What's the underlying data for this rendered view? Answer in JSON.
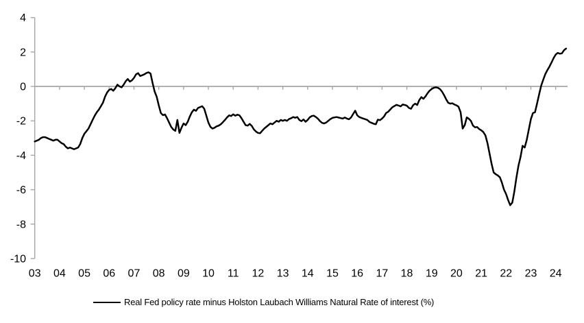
{
  "chart_data": {
    "type": "line",
    "title": "",
    "legend": "Real Fed policy rate minus Holston Laubach Williams Natural Rate of interest (%)",
    "legend_position": "bottom-center",
    "x_start_year": 2003,
    "frequency": "monthly",
    "x_tick_labels": [
      "03",
      "04",
      "05",
      "06",
      "07",
      "08",
      "09",
      "10",
      "11",
      "12",
      "13",
      "14",
      "15",
      "16",
      "17",
      "18",
      "19",
      "20",
      "21",
      "22",
      "23",
      "24"
    ],
    "y_ticks": [
      4,
      2,
      0,
      -2,
      -4,
      -6,
      -8,
      -10
    ],
    "ylim": [
      -10,
      4
    ],
    "grid": "zero-line-only",
    "colors": {
      "line": "#000000",
      "axis": "#a6a6a6",
      "text": "#000000",
      "background": "#ffffff"
    },
    "series": [
      {
        "name": "Real Fed policy rate minus Holston Laubach Williams Natural Rate of interest (%)",
        "color": "#000000",
        "values": [
          -3.2,
          -3.15,
          -3.1,
          -3.0,
          -2.95,
          -2.95,
          -3.0,
          -3.05,
          -3.1,
          -3.15,
          -3.1,
          -3.1,
          -3.2,
          -3.3,
          -3.35,
          -3.5,
          -3.6,
          -3.55,
          -3.6,
          -3.65,
          -3.6,
          -3.55,
          -3.35,
          -3.0,
          -2.75,
          -2.6,
          -2.45,
          -2.2,
          -1.95,
          -1.7,
          -1.5,
          -1.35,
          -1.15,
          -0.95,
          -0.6,
          -0.35,
          -0.2,
          -0.15,
          -0.25,
          -0.1,
          0.1,
          0.0,
          -0.05,
          0.1,
          0.3,
          0.43,
          0.28,
          0.35,
          0.5,
          0.7,
          0.77,
          0.6,
          0.65,
          0.7,
          0.78,
          0.82,
          0.75,
          0.2,
          -0.3,
          -0.6,
          -1.1,
          -1.55,
          -1.67,
          -1.63,
          -1.85,
          -2.1,
          -2.35,
          -2.5,
          -2.58,
          -1.95,
          -2.7,
          -2.4,
          -2.15,
          -2.25,
          -2.05,
          -1.75,
          -1.5,
          -1.35,
          -1.42,
          -1.25,
          -1.2,
          -1.15,
          -1.3,
          -1.7,
          -2.1,
          -2.35,
          -2.45,
          -2.4,
          -2.32,
          -2.28,
          -2.2,
          -2.08,
          -1.95,
          -1.8,
          -1.68,
          -1.72,
          -1.62,
          -1.7,
          -1.64,
          -1.68,
          -1.85,
          -2.05,
          -2.25,
          -2.28,
          -2.18,
          -2.3,
          -2.5,
          -2.62,
          -2.7,
          -2.72,
          -2.58,
          -2.45,
          -2.35,
          -2.25,
          -2.15,
          -2.2,
          -2.1,
          -2.0,
          -2.05,
          -1.95,
          -2.0,
          -1.95,
          -2.0,
          -1.9,
          -1.85,
          -1.78,
          -1.82,
          -1.78,
          -1.95,
          -2.02,
          -1.92,
          -2.05,
          -1.95,
          -1.8,
          -1.72,
          -1.7,
          -1.78,
          -1.88,
          -2.02,
          -2.12,
          -2.15,
          -2.1,
          -2.0,
          -1.9,
          -1.83,
          -1.8,
          -1.78,
          -1.81,
          -1.84,
          -1.87,
          -1.81,
          -1.87,
          -1.91,
          -1.81,
          -1.61,
          -1.41,
          -1.68,
          -1.78,
          -1.83,
          -1.87,
          -1.91,
          -1.96,
          -2.07,
          -2.12,
          -2.17,
          -2.2,
          -1.93,
          -1.96,
          -1.87,
          -1.74,
          -1.54,
          -1.47,
          -1.34,
          -1.21,
          -1.14,
          -1.07,
          -1.11,
          -1.16,
          -1.05,
          -1.08,
          -1.12,
          -1.25,
          -1.3,
          -1.1,
          -1.0,
          -1.08,
          -0.8,
          -0.62,
          -0.72,
          -0.58,
          -0.4,
          -0.25,
          -0.15,
          -0.08,
          -0.05,
          -0.08,
          -0.15,
          -0.3,
          -0.5,
          -0.75,
          -0.95,
          -1.0,
          -0.98,
          -1.05,
          -1.1,
          -1.18,
          -1.5,
          -2.45,
          -2.25,
          -1.8,
          -1.88,
          -2.0,
          -2.28,
          -2.38,
          -2.36,
          -2.48,
          -2.55,
          -2.65,
          -2.85,
          -3.3,
          -3.9,
          -4.5,
          -5.0,
          -5.1,
          -5.17,
          -5.28,
          -5.6,
          -6.0,
          -6.25,
          -6.6,
          -6.9,
          -6.75,
          -6.1,
          -5.3,
          -4.6,
          -4.1,
          -3.45,
          -3.55,
          -3.1,
          -2.5,
          -1.9,
          -1.55,
          -1.5,
          -1.0,
          -0.45,
          0.05,
          0.4,
          0.72,
          0.95,
          1.15,
          1.4,
          1.65,
          1.85,
          1.95,
          1.9,
          1.92,
          2.1,
          2.2
        ]
      }
    ]
  }
}
